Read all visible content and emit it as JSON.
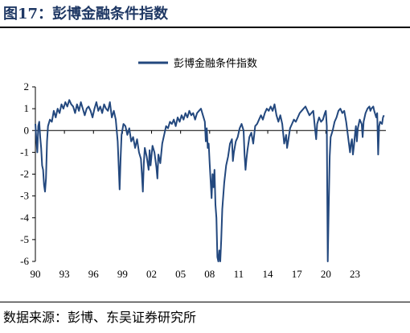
{
  "figure": {
    "title": "图17：彭博金融条件指数",
    "source": "数据来源：彭博、东吴证券研究所"
  },
  "colors": {
    "series": "#23487e",
    "axis": "#000000"
  },
  "chart_data": {
    "type": "line",
    "title": "",
    "legend": {
      "position": "top-center"
    },
    "series": [
      {
        "name": "彭博金融条件指数",
        "color": "#23487e",
        "points": [
          [
            1990.0,
            0.3
          ],
          [
            1990.1,
            -0.4
          ],
          [
            1990.2,
            -1.0
          ],
          [
            1990.3,
            0.2
          ],
          [
            1990.4,
            0.4
          ],
          [
            1990.5,
            -0.3
          ],
          [
            1990.6,
            -0.8
          ],
          [
            1990.7,
            -1.6
          ],
          [
            1990.8,
            -1.8
          ],
          [
            1990.9,
            -2.5
          ],
          [
            1991.0,
            -2.8
          ],
          [
            1991.1,
            -2.2
          ],
          [
            1991.2,
            -0.5
          ],
          [
            1991.3,
            0.2
          ],
          [
            1991.5,
            0.5
          ],
          [
            1991.7,
            0.4
          ],
          [
            1991.9,
            0.9
          ],
          [
            1992.1,
            0.6
          ],
          [
            1992.3,
            1.0
          ],
          [
            1992.5,
            0.8
          ],
          [
            1992.7,
            1.2
          ],
          [
            1992.9,
            1.0
          ],
          [
            1993.1,
            1.3
          ],
          [
            1993.3,
            1.1
          ],
          [
            1993.5,
            1.4
          ],
          [
            1993.7,
            1.2
          ],
          [
            1993.9,
            1.1
          ],
          [
            1994.1,
            0.8
          ],
          [
            1994.3,
            1.2
          ],
          [
            1994.5,
            0.9
          ],
          [
            1994.7,
            1.3
          ],
          [
            1994.9,
            1.0
          ],
          [
            1995.1,
            0.7
          ],
          [
            1995.3,
            1.0
          ],
          [
            1995.5,
            1.1
          ],
          [
            1995.7,
            0.9
          ],
          [
            1995.9,
            0.6
          ],
          [
            1996.1,
            1.0
          ],
          [
            1996.3,
            1.3
          ],
          [
            1996.5,
            0.9
          ],
          [
            1996.7,
            1.1
          ],
          [
            1996.9,
            0.8
          ],
          [
            1997.1,
            1.2
          ],
          [
            1997.3,
            1.0
          ],
          [
            1997.5,
            0.9
          ],
          [
            1997.7,
            1.3
          ],
          [
            1997.9,
            0.6
          ],
          [
            1998.1,
            0.9
          ],
          [
            1998.3,
            0.5
          ],
          [
            1998.5,
            -0.5
          ],
          [
            1998.7,
            -2.7
          ],
          [
            1998.8,
            -1.3
          ],
          [
            1998.9,
            -0.2
          ],
          [
            1999.1,
            0.3
          ],
          [
            1999.3,
            0.2
          ],
          [
            1999.5,
            -0.2
          ],
          [
            1999.7,
            0.1
          ],
          [
            1999.9,
            -0.5
          ],
          [
            2000.1,
            -0.3
          ],
          [
            2000.3,
            -0.8
          ],
          [
            2000.5,
            -0.4
          ],
          [
            2000.7,
            -1.0
          ],
          [
            2000.9,
            -1.3
          ],
          [
            2001.0,
            -2.0
          ],
          [
            2001.1,
            -2.8
          ],
          [
            2001.2,
            -1.5
          ],
          [
            2001.3,
            -0.8
          ],
          [
            2001.5,
            -1.2
          ],
          [
            2001.7,
            -1.8
          ],
          [
            2001.8,
            -0.9
          ],
          [
            2001.9,
            -1.6
          ],
          [
            2002.1,
            -0.7
          ],
          [
            2002.3,
            -1.0
          ],
          [
            2002.5,
            -1.7
          ],
          [
            2002.6,
            -2.2
          ],
          [
            2002.7,
            -1.1
          ],
          [
            2002.9,
            -1.5
          ],
          [
            2003.1,
            -0.6
          ],
          [
            2003.3,
            -0.2
          ],
          [
            2003.5,
            0.2
          ],
          [
            2003.7,
            0.1
          ],
          [
            2003.9,
            0.4
          ],
          [
            2004.1,
            0.3
          ],
          [
            2004.3,
            0.5
          ],
          [
            2004.5,
            0.2
          ],
          [
            2004.7,
            0.6
          ],
          [
            2004.9,
            0.4
          ],
          [
            2005.1,
            0.7
          ],
          [
            2005.3,
            0.5
          ],
          [
            2005.5,
            0.8
          ],
          [
            2005.7,
            0.6
          ],
          [
            2005.9,
            0.9
          ],
          [
            2006.1,
            0.7
          ],
          [
            2006.3,
            0.8
          ],
          [
            2006.5,
            0.5
          ],
          [
            2006.7,
            0.8
          ],
          [
            2006.9,
            0.9
          ],
          [
            2007.1,
            1.0
          ],
          [
            2007.3,
            0.7
          ],
          [
            2007.5,
            0.4
          ],
          [
            2007.6,
            -0.5
          ],
          [
            2007.7,
            0.1
          ],
          [
            2007.8,
            -0.8
          ],
          [
            2007.9,
            -0.6
          ],
          [
            2008.0,
            -1.5
          ],
          [
            2008.1,
            -2.3
          ],
          [
            2008.2,
            -3.1
          ],
          [
            2008.3,
            -2.0
          ],
          [
            2008.4,
            -2.6
          ],
          [
            2008.5,
            -1.8
          ],
          [
            2008.6,
            -3.4
          ],
          [
            2008.7,
            -4.0
          ],
          [
            2008.8,
            -5.8
          ],
          [
            2008.9,
            -6.0
          ],
          [
            2009.0,
            -5.5
          ],
          [
            2009.1,
            -6.0
          ],
          [
            2009.2,
            -5.0
          ],
          [
            2009.3,
            -3.6
          ],
          [
            2009.5,
            -2.4
          ],
          [
            2009.7,
            -1.6
          ],
          [
            2009.9,
            -1.2
          ],
          [
            2010.1,
            -0.6
          ],
          [
            2010.3,
            -0.4
          ],
          [
            2010.4,
            -1.4
          ],
          [
            2010.5,
            -1.0
          ],
          [
            2010.7,
            -0.5
          ],
          [
            2010.9,
            -0.3
          ],
          [
            2011.1,
            0.1
          ],
          [
            2011.3,
            0.3
          ],
          [
            2011.5,
            0.0
          ],
          [
            2011.6,
            -1.1
          ],
          [
            2011.7,
            -1.8
          ],
          [
            2011.8,
            -1.3
          ],
          [
            2011.9,
            -0.9
          ],
          [
            2012.1,
            -0.3
          ],
          [
            2012.3,
            -0.1
          ],
          [
            2012.5,
            -0.6
          ],
          [
            2012.7,
            0.2
          ],
          [
            2012.9,
            0.3
          ],
          [
            2013.1,
            0.5
          ],
          [
            2013.3,
            0.7
          ],
          [
            2013.5,
            0.5
          ],
          [
            2013.7,
            0.8
          ],
          [
            2013.9,
            1.0
          ],
          [
            2014.1,
            0.9
          ],
          [
            2014.3,
            1.1
          ],
          [
            2014.5,
            0.9
          ],
          [
            2014.7,
            1.2
          ],
          [
            2014.9,
            0.7
          ],
          [
            2015.1,
            0.4
          ],
          [
            2015.3,
            0.7
          ],
          [
            2015.5,
            0.3
          ],
          [
            2015.7,
            -0.6
          ],
          [
            2015.9,
            -0.2
          ],
          [
            2016.0,
            -0.8
          ],
          [
            2016.1,
            -0.5
          ],
          [
            2016.3,
            0.1
          ],
          [
            2016.5,
            0.3
          ],
          [
            2016.7,
            0.5
          ],
          [
            2016.9,
            0.4
          ],
          [
            2017.1,
            0.6
          ],
          [
            2017.3,
            0.8
          ],
          [
            2017.5,
            0.9
          ],
          [
            2017.7,
            1.0
          ],
          [
            2017.9,
            1.1
          ],
          [
            2018.1,
            0.9
          ],
          [
            2018.3,
            0.7
          ],
          [
            2018.5,
            0.8
          ],
          [
            2018.7,
            0.9
          ],
          [
            2018.9,
            0.0
          ],
          [
            2019.0,
            -0.4
          ],
          [
            2019.1,
            0.3
          ],
          [
            2019.3,
            0.6
          ],
          [
            2019.5,
            0.4
          ],
          [
            2019.7,
            0.5
          ],
          [
            2019.9,
            0.8
          ],
          [
            2020.0,
            0.9
          ],
          [
            2020.1,
            0.2
          ],
          [
            2020.15,
            -3.0
          ],
          [
            2020.2,
            -6.0
          ],
          [
            2020.3,
            -3.5
          ],
          [
            2020.4,
            -1.2
          ],
          [
            2020.5,
            -0.3
          ],
          [
            2020.7,
            0.0
          ],
          [
            2020.9,
            0.4
          ],
          [
            2021.1,
            0.6
          ],
          [
            2021.3,
            0.9
          ],
          [
            2021.5,
            1.0
          ],
          [
            2021.7,
            0.8
          ],
          [
            2021.9,
            0.9
          ],
          [
            2022.1,
            0.4
          ],
          [
            2022.3,
            -0.3
          ],
          [
            2022.5,
            -1.0
          ],
          [
            2022.6,
            -0.6
          ],
          [
            2022.7,
            -0.4
          ],
          [
            2022.8,
            -1.1
          ],
          [
            2022.9,
            -0.7
          ],
          [
            2023.0,
            -0.2
          ],
          [
            2023.1,
            0.2
          ],
          [
            2023.2,
            -0.5
          ],
          [
            2023.3,
            0.1
          ],
          [
            2023.5,
            0.5
          ],
          [
            2023.7,
            0.3
          ],
          [
            2023.8,
            -0.3
          ],
          [
            2023.9,
            0.4
          ],
          [
            2024.1,
            0.8
          ],
          [
            2024.3,
            1.0
          ],
          [
            2024.5,
            1.1
          ],
          [
            2024.6,
            0.9
          ],
          [
            2024.7,
            1.0
          ],
          [
            2024.9,
            1.1
          ],
          [
            2025.0,
            0.9
          ],
          [
            2025.2,
            0.6
          ],
          [
            2025.3,
            0.8
          ],
          [
            2025.4,
            -1.1
          ],
          [
            2025.5,
            0.2
          ],
          [
            2025.6,
            0.4
          ],
          [
            2025.8,
            0.3
          ],
          [
            2025.9,
            0.6
          ],
          [
            2026.0,
            0.7
          ]
        ]
      }
    ],
    "x_ticks": [
      {
        "value": 1990,
        "label": "90"
      },
      {
        "value": 1993,
        "label": "93"
      },
      {
        "value": 1996,
        "label": "96"
      },
      {
        "value": 1999,
        "label": "99"
      },
      {
        "value": 2002,
        "label": "02"
      },
      {
        "value": 2005,
        "label": "05"
      },
      {
        "value": 2008,
        "label": "08"
      },
      {
        "value": 2011,
        "label": "11"
      },
      {
        "value": 2014,
        "label": "14"
      },
      {
        "value": 2017,
        "label": "17"
      },
      {
        "value": 2020,
        "label": "20"
      },
      {
        "value": 2023,
        "label": "23"
      }
    ],
    "xlim": [
      1990,
      2026.2
    ],
    "y_ticks": [
      2,
      1,
      0,
      -1,
      -2,
      -3,
      -4,
      -5,
      -6
    ],
    "ylim": [
      -6,
      2
    ],
    "grid": false,
    "xlabel": "",
    "ylabel": ""
  }
}
